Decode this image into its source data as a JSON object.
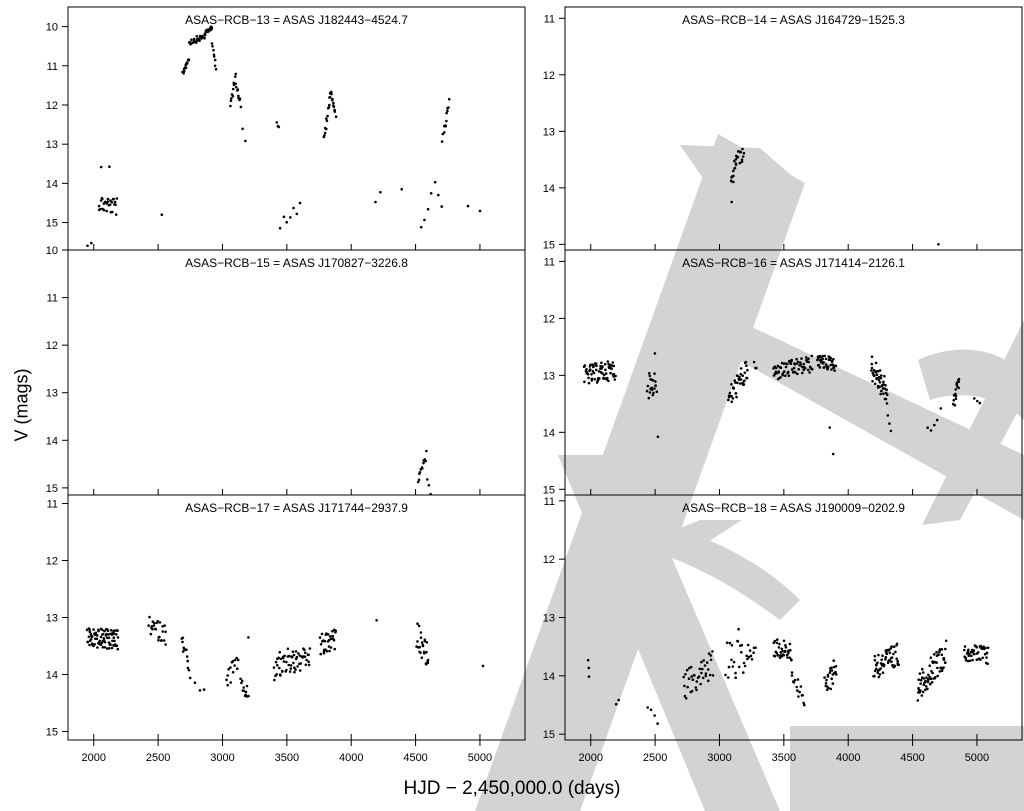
{
  "figure": {
    "ylabel": "V (mags)",
    "xlabel": "HJD − 2,450,000.0 (days)",
    "watermark_color": "#d3d3d3",
    "point_color": "#000000"
  },
  "chart_data": [
    {
      "type": "scatter",
      "title": "ASAS−RCB−13 = ASAS J182443−4524.7",
      "xlim": [
        1800,
        5350
      ],
      "ylim": [
        15.7,
        9.5
      ],
      "xticks": [],
      "yticks": [
        "10",
        "11",
        "12",
        "13",
        "14",
        "15"
      ],
      "segments": [
        {
          "x0": 1950,
          "x1": 1980,
          "y0": 15.6,
          "y1": 15.5,
          "n": 2,
          "spread": 0.05
        },
        {
          "x0": 2040,
          "x1": 2180,
          "y0": 14.5,
          "y1": 14.6,
          "n": 28,
          "spread": 0.45
        },
        {
          "x0": 2060,
          "x1": 2120,
          "y0": 13.6,
          "y1": 13.6,
          "n": 2,
          "spread": 0.05
        },
        {
          "x0": 2530,
          "x1": 2530,
          "y0": 14.8,
          "y1": 14.8,
          "n": 1,
          "spread": 0.0
        },
        {
          "x0": 2690,
          "x1": 2740,
          "y0": 11.2,
          "y1": 10.8,
          "n": 14,
          "spread": 0.15
        },
        {
          "x0": 2740,
          "x1": 2860,
          "y0": 10.4,
          "y1": 10.25,
          "n": 28,
          "spread": 0.15
        },
        {
          "x0": 2860,
          "x1": 2920,
          "y0": 10.2,
          "y1": 10.0,
          "n": 16,
          "spread": 0.1
        },
        {
          "x0": 2920,
          "x1": 2950,
          "y0": 10.4,
          "y1": 11.1,
          "n": 8,
          "spread": 0.1
        },
        {
          "x0": 3060,
          "x1": 3100,
          "y0": 12.0,
          "y1": 11.3,
          "n": 10,
          "spread": 0.2
        },
        {
          "x0": 3100,
          "x1": 3140,
          "y0": 11.3,
          "y1": 12.0,
          "n": 10,
          "spread": 0.2
        },
        {
          "x0": 3160,
          "x1": 3180,
          "y0": 12.6,
          "y1": 12.9,
          "n": 2,
          "spread": 0.05
        },
        {
          "x0": 3420,
          "x1": 3440,
          "y0": 12.4,
          "y1": 12.6,
          "n": 3,
          "spread": 0.1
        },
        {
          "x0": 3450,
          "x1": 3600,
          "y0": 15.0,
          "y1": 14.6,
          "n": 7,
          "spread": 0.35
        },
        {
          "x0": 3790,
          "x1": 3840,
          "y0": 12.9,
          "y1": 11.7,
          "n": 14,
          "spread": 0.2
        },
        {
          "x0": 3840,
          "x1": 3880,
          "y0": 11.6,
          "y1": 12.3,
          "n": 12,
          "spread": 0.2
        },
        {
          "x0": 4190,
          "x1": 4230,
          "y0": 14.5,
          "y1": 14.2,
          "n": 2,
          "spread": 0.05
        },
        {
          "x0": 4390,
          "x1": 4390,
          "y0": 14.15,
          "y1": 14.15,
          "n": 1,
          "spread": 0.0
        },
        {
          "x0": 4540,
          "x1": 4620,
          "y0": 15.0,
          "y1": 14.4,
          "n": 4,
          "spread": 0.4
        },
        {
          "x0": 4650,
          "x1": 4700,
          "y0": 14.0,
          "y1": 14.6,
          "n": 3,
          "spread": 0.2
        },
        {
          "x0": 4710,
          "x1": 4760,
          "y0": 12.9,
          "y1": 11.9,
          "n": 12,
          "spread": 0.2
        },
        {
          "x0": 4910,
          "x1": 5000,
          "y0": 14.6,
          "y1": 14.7,
          "n": 2,
          "spread": 0.05
        }
      ]
    },
    {
      "type": "scatter",
      "title": "ASAS−RCB−14 = ASAS J164729−1525.3",
      "xlim": [
        1800,
        5350
      ],
      "ylim": [
        15.1,
        10.8
      ],
      "xticks": [],
      "yticks": [
        "11",
        "12",
        "13",
        "14",
        "15"
      ],
      "segments": [
        {
          "x0": 3090,
          "x1": 3130,
          "y0": 14.0,
          "y1": 13.5,
          "n": 12,
          "spread": 0.3
        },
        {
          "x0": 3130,
          "x1": 3190,
          "y0": 13.5,
          "y1": 13.4,
          "n": 14,
          "spread": 0.25
        },
        {
          "x0": 3095,
          "x1": 3095,
          "y0": 14.25,
          "y1": 14.25,
          "n": 1,
          "spread": 0.0
        },
        {
          "x0": 4700,
          "x1": 4700,
          "y0": 15.0,
          "y1": 15.0,
          "n": 1,
          "spread": 0.0
        }
      ]
    },
    {
      "type": "scatter",
      "title": "ASAS−RCB−15 = ASAS J170827−3226.8",
      "xlim": [
        1800,
        5350
      ],
      "ylim": [
        15.15,
        10.0
      ],
      "xticks": [],
      "yticks": [
        "10",
        "11",
        "12",
        "13",
        "14",
        "15"
      ],
      "segments": [
        {
          "x0": 4520,
          "x1": 4580,
          "y0": 14.8,
          "y1": 14.3,
          "n": 12,
          "spread": 0.2
        },
        {
          "x0": 4590,
          "x1": 4620,
          "y0": 14.8,
          "y1": 15.1,
          "n": 3,
          "spread": 0.1
        }
      ]
    },
    {
      "type": "scatter",
      "title": "ASAS−RCB−16 = ASAS J171414−2126.1",
      "xlim": [
        1800,
        5350
      ],
      "ylim": [
        15.1,
        10.8
      ],
      "xticks": [],
      "yticks": [
        "11",
        "12",
        "13",
        "14",
        "15"
      ],
      "segments": [
        {
          "x0": 1950,
          "x1": 2190,
          "y0": 13.0,
          "y1": 12.9,
          "n": 70,
          "spread": 0.35
        },
        {
          "x0": 2440,
          "x1": 2510,
          "y0": 13.2,
          "y1": 13.1,
          "n": 20,
          "spread": 0.45
        },
        {
          "x0": 2500,
          "x1": 2520,
          "y0": 12.6,
          "y1": 14.1,
          "n": 2,
          "spread": 0.05
        },
        {
          "x0": 3070,
          "x1": 3220,
          "y0": 13.4,
          "y1": 12.9,
          "n": 40,
          "spread": 0.4
        },
        {
          "x0": 3270,
          "x1": 3290,
          "y0": 12.8,
          "y1": 12.9,
          "n": 3,
          "spread": 0.1
        },
        {
          "x0": 3420,
          "x1": 3720,
          "y0": 12.95,
          "y1": 12.8,
          "n": 70,
          "spread": 0.3
        },
        {
          "x0": 3760,
          "x1": 3900,
          "y0": 12.75,
          "y1": 12.8,
          "n": 40,
          "spread": 0.25
        },
        {
          "x0": 3860,
          "x1": 3880,
          "y0": 13.9,
          "y1": 14.4,
          "n": 2,
          "spread": 0.05
        },
        {
          "x0": 4180,
          "x1": 4300,
          "y0": 12.85,
          "y1": 13.3,
          "n": 45,
          "spread": 0.45
        },
        {
          "x0": 4300,
          "x1": 4330,
          "y0": 13.5,
          "y1": 14.0,
          "n": 4,
          "spread": 0.1
        },
        {
          "x0": 4620,
          "x1": 4720,
          "y0": 14.0,
          "y1": 13.6,
          "n": 5,
          "spread": 0.2
        },
        {
          "x0": 4820,
          "x1": 4860,
          "y0": 13.5,
          "y1": 13.05,
          "n": 16,
          "spread": 0.25
        },
        {
          "x0": 4980,
          "x1": 5020,
          "y0": 13.4,
          "y1": 13.5,
          "n": 3,
          "spread": 0.1
        }
      ]
    },
    {
      "type": "scatter",
      "title": "ASAS−RCB−17 = ASAS J171744−2937.9",
      "xlim": [
        1800,
        5350
      ],
      "ylim": [
        15.15,
        10.85
      ],
      "xticks": [
        "2000",
        "2500",
        "3000",
        "3500",
        "4000",
        "4500",
        "5000"
      ],
      "yticks": [
        "11",
        "12",
        "13",
        "14",
        "15"
      ],
      "segments": [
        {
          "x0": 1950,
          "x1": 2190,
          "y0": 13.35,
          "y1": 13.4,
          "n": 85,
          "spread": 0.35
        },
        {
          "x0": 2430,
          "x1": 2560,
          "y0": 13.15,
          "y1": 13.3,
          "n": 25,
          "spread": 0.35
        },
        {
          "x0": 2680,
          "x1": 2740,
          "y0": 13.3,
          "y1": 13.9,
          "n": 12,
          "spread": 0.3
        },
        {
          "x0": 2750,
          "x1": 2860,
          "y0": 14.1,
          "y1": 14.3,
          "n": 4,
          "spread": 0.1
        },
        {
          "x0": 3030,
          "x1": 3120,
          "y0": 14.1,
          "y1": 13.8,
          "n": 14,
          "spread": 0.4
        },
        {
          "x0": 3140,
          "x1": 3200,
          "y0": 14.2,
          "y1": 14.35,
          "n": 12,
          "spread": 0.25
        },
        {
          "x0": 3200,
          "x1": 3200,
          "y0": 13.35,
          "y1": 13.35,
          "n": 1,
          "spread": 0.0
        },
        {
          "x0": 3400,
          "x1": 3560,
          "y0": 13.9,
          "y1": 13.7,
          "n": 35,
          "spread": 0.5
        },
        {
          "x0": 3560,
          "x1": 3680,
          "y0": 13.8,
          "y1": 13.7,
          "n": 25,
          "spread": 0.4
        },
        {
          "x0": 3760,
          "x1": 3880,
          "y0": 13.5,
          "y1": 13.4,
          "n": 30,
          "spread": 0.4
        },
        {
          "x0": 4200,
          "x1": 4200,
          "y0": 13.05,
          "y1": 13.05,
          "n": 1,
          "spread": 0.0
        },
        {
          "x0": 4510,
          "x1": 4600,
          "y0": 13.3,
          "y1": 13.7,
          "n": 25,
          "spread": 0.45
        },
        {
          "x0": 5020,
          "x1": 5020,
          "y0": 13.85,
          "y1": 13.85,
          "n": 1,
          "spread": 0.0
        }
      ]
    },
    {
      "type": "scatter",
      "title": "ASAS−RCB−18 = ASAS J190009−0202.9",
      "xlim": [
        1800,
        5350
      ],
      "ylim": [
        15.1,
        10.9
      ],
      "xticks": [
        "2000",
        "2500",
        "3000",
        "3500",
        "4000",
        "4500",
        "5000"
      ],
      "yticks": [
        "11",
        "12",
        "13",
        "14",
        "15"
      ],
      "segments": [
        {
          "x0": 1980,
          "x1": 1990,
          "y0": 13.75,
          "y1": 14.0,
          "n": 3,
          "spread": 0.05
        },
        {
          "x0": 2200,
          "x1": 2220,
          "y0": 14.5,
          "y1": 14.4,
          "n": 2,
          "spread": 0.05
        },
        {
          "x0": 2440,
          "x1": 2520,
          "y0": 14.6,
          "y1": 14.75,
          "n": 4,
          "spread": 0.15
        },
        {
          "x0": 2720,
          "x1": 2950,
          "y0": 14.2,
          "y1": 13.8,
          "n": 40,
          "spread": 0.5
        },
        {
          "x0": 3050,
          "x1": 3280,
          "y0": 13.75,
          "y1": 13.65,
          "n": 30,
          "spread": 0.65
        },
        {
          "x0": 3150,
          "x1": 3150,
          "y0": 13.2,
          "y1": 13.2,
          "n": 1,
          "spread": 0.0
        },
        {
          "x0": 3420,
          "x1": 3560,
          "y0": 13.5,
          "y1": 13.6,
          "n": 35,
          "spread": 0.35
        },
        {
          "x0": 3560,
          "x1": 3660,
          "y0": 13.9,
          "y1": 14.5,
          "n": 15,
          "spread": 0.3
        },
        {
          "x0": 3820,
          "x1": 3910,
          "y0": 14.2,
          "y1": 13.8,
          "n": 25,
          "spread": 0.45
        },
        {
          "x0": 4200,
          "x1": 4390,
          "y0": 13.85,
          "y1": 13.65,
          "n": 60,
          "spread": 0.45
        },
        {
          "x0": 4540,
          "x1": 4760,
          "y0": 14.2,
          "y1": 13.6,
          "n": 70,
          "spread": 0.45
        },
        {
          "x0": 4900,
          "x1": 5090,
          "y0": 13.6,
          "y1": 13.65,
          "n": 45,
          "spread": 0.3
        }
      ]
    }
  ]
}
